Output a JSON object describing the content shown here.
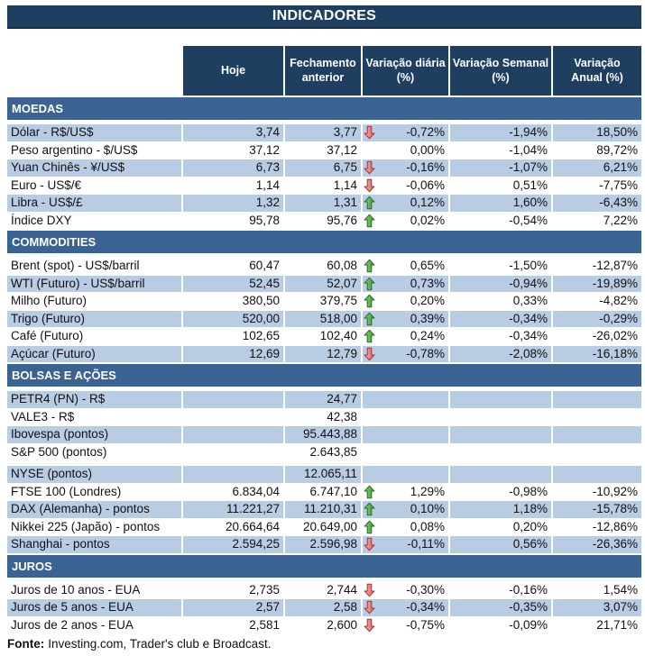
{
  "title": "INDICADORES",
  "columns": [
    "Hoje",
    "Fechamento\nanterior",
    "Variação diária\n(%)",
    "Variação Semanal\n(%)",
    "Variação\nAnual (%)"
  ],
  "sections": [
    {
      "name": "MOEDAS",
      "first_row_shaded": true,
      "rows": [
        {
          "label": "Dólar - R$/US$",
          "hoje": "3,74",
          "fechamento": "3,77",
          "arrow": "down",
          "var_diaria": "-0,72%",
          "var_semanal": "-1,94%",
          "var_anual": "18,50%"
        },
        {
          "label": "Peso argentino - $/US$",
          "hoje": "37,12",
          "fechamento": "37,12",
          "arrow": null,
          "var_diaria": "0,00%",
          "var_semanal": "-1,04%",
          "var_anual": "89,72%"
        },
        {
          "label": "Yuan Chinês - ¥/US$",
          "hoje": "6,73",
          "fechamento": "6,75",
          "arrow": "down",
          "var_diaria": "-0,16%",
          "var_semanal": "-1,07%",
          "var_anual": "6,21%"
        },
        {
          "label": "Euro - US$/€",
          "hoje": "1,14",
          "fechamento": "1,14",
          "arrow": "down",
          "var_diaria": "-0,06%",
          "var_semanal": "0,51%",
          "var_anual": "-7,75%"
        },
        {
          "label": "Libra - US$/£",
          "hoje": "1,32",
          "fechamento": "1,31",
          "arrow": "up",
          "var_diaria": "0,12%",
          "var_semanal": "1,60%",
          "var_anual": "-6,43%"
        },
        {
          "label": "Índice DXY",
          "hoje": "95,78",
          "fechamento": "95,76",
          "arrow": "up",
          "var_diaria": "0,02%",
          "var_semanal": "-0,54%",
          "var_anual": "7,22%"
        }
      ]
    },
    {
      "name": "COMMODITIES",
      "first_row_shaded": false,
      "rows": [
        {
          "label": "Brent (spot) - US$/barril",
          "hoje": "60,47",
          "fechamento": "60,08",
          "arrow": "up",
          "var_diaria": "0,65%",
          "var_semanal": "-1,50%",
          "var_anual": "-12,87%"
        },
        {
          "label": "WTI (Futuro) - US$/barril",
          "hoje": "52,45",
          "fechamento": "52,07",
          "arrow": "up",
          "var_diaria": "0,73%",
          "var_semanal": "-0,94%",
          "var_anual": "-19,89%"
        },
        {
          "label": "Milho (Futuro)",
          "hoje": "380,50",
          "fechamento": "379,75",
          "arrow": "up",
          "var_diaria": "0,20%",
          "var_semanal": "0,33%",
          "var_anual": "-4,82%"
        },
        {
          "label": "Trigo (Futuro)",
          "hoje": "520,00",
          "fechamento": "518,00",
          "arrow": "up",
          "var_diaria": "0,39%",
          "var_semanal": "-0,34%",
          "var_anual": "-0,29%"
        },
        {
          "label": "Café (Futuro)",
          "hoje": "102,65",
          "fechamento": "102,40",
          "arrow": "up",
          "var_diaria": "0,24%",
          "var_semanal": "-0,34%",
          "var_anual": "-26,02%"
        },
        {
          "label": "Açúcar (Futuro)",
          "hoje": "12,69",
          "fechamento": "12,79",
          "arrow": "down",
          "var_diaria": "-0,78%",
          "var_semanal": "-2,08%",
          "var_anual": "-16,18%"
        }
      ]
    },
    {
      "name": "BOLSAS E AÇÕES",
      "first_row_shaded": true,
      "rows": [
        {
          "label": "PETR4 (PN) - R$",
          "hoje": "",
          "fechamento": "24,77",
          "arrow": null,
          "var_diaria": "",
          "var_semanal": "",
          "var_anual": ""
        },
        {
          "label": "VALE3 - R$",
          "hoje": "",
          "fechamento": "42,38",
          "arrow": null,
          "var_diaria": "",
          "var_semanal": "",
          "var_anual": ""
        },
        {
          "label": "Ibovespa (pontos)",
          "hoje": "",
          "fechamento": "95.443,88",
          "arrow": null,
          "var_diaria": "",
          "var_semanal": "",
          "var_anual": ""
        },
        {
          "label": "S&P 500 (pontos)",
          "hoje": "",
          "fechamento": "2.643,85",
          "arrow": null,
          "var_diaria": "",
          "var_semanal": "",
          "var_anual": ""
        },
        {
          "label": "NYSE (pontos)",
          "hoje": "",
          "fechamento": "12.065,11",
          "arrow": null,
          "var_diaria": "",
          "var_semanal": "",
          "var_anual": "",
          "gap_before": true
        },
        {
          "label": "FTSE 100 (Londres)",
          "hoje": "6.834,04",
          "fechamento": "6.747,10",
          "arrow": "up",
          "var_diaria": "1,29%",
          "var_semanal": "-0,98%",
          "var_anual": "-10,92%"
        },
        {
          "label": "DAX (Alemanha) - pontos",
          "hoje": "11.221,27",
          "fechamento": "11.210,31",
          "arrow": "up",
          "var_diaria": "0,10%",
          "var_semanal": "1,18%",
          "var_anual": "-15,78%"
        },
        {
          "label": "Nikkei 225 (Japão) - pontos",
          "hoje": "20.664,64",
          "fechamento": "20.649,00",
          "arrow": "up",
          "var_diaria": "0,08%",
          "var_semanal": "0,20%",
          "var_anual": "-12,86%"
        },
        {
          "label": "Shanghai - pontos",
          "hoje": "2.594,25",
          "fechamento": "2.596,98",
          "arrow": "down",
          "var_diaria": "-0,11%",
          "var_semanal": "0,56%",
          "var_anual": "-26,36%"
        }
      ]
    },
    {
      "name": "JUROS",
      "first_row_shaded": false,
      "rows": [
        {
          "label": "Juros de 10 anos - EUA",
          "hoje": "2,735",
          "fechamento": "2,744",
          "arrow": "down",
          "var_diaria": "-0,30%",
          "var_semanal": "-0,16%",
          "var_anual": "1,54%"
        },
        {
          "label": "Juros de 5 anos - EUA",
          "hoje": "2,57",
          "fechamento": "2,58",
          "arrow": "down",
          "var_diaria": "-0,34%",
          "var_semanal": "-0,35%",
          "var_anual": "3,07%"
        },
        {
          "label": "Juros de 2 anos - EUA",
          "hoje": "2,581",
          "fechamento": "2,600",
          "arrow": "down",
          "var_diaria": "-0,75%",
          "var_semanal": "-0,09%",
          "var_anual": "21,71%"
        }
      ]
    }
  ],
  "footer": {
    "label": "Fonte:",
    "text": "Investing.com, Trader's club e Broadcast."
  },
  "colors": {
    "header_navy": "#1F3F60",
    "section_band_blue": "#3A6292",
    "row_shaded_blue": "#B8CCE4",
    "arrow_up": {
      "fill_light": "#8FCE7E",
      "fill_dark": "#3C9631",
      "stroke": "#276E23"
    },
    "arrow_down": {
      "fill_light": "#F7AFB0",
      "fill_dark": "#E05E60",
      "stroke": "#A33638"
    }
  },
  "icons": {
    "up": "up-arrow-icon",
    "down": "down-arrow-icon"
  }
}
